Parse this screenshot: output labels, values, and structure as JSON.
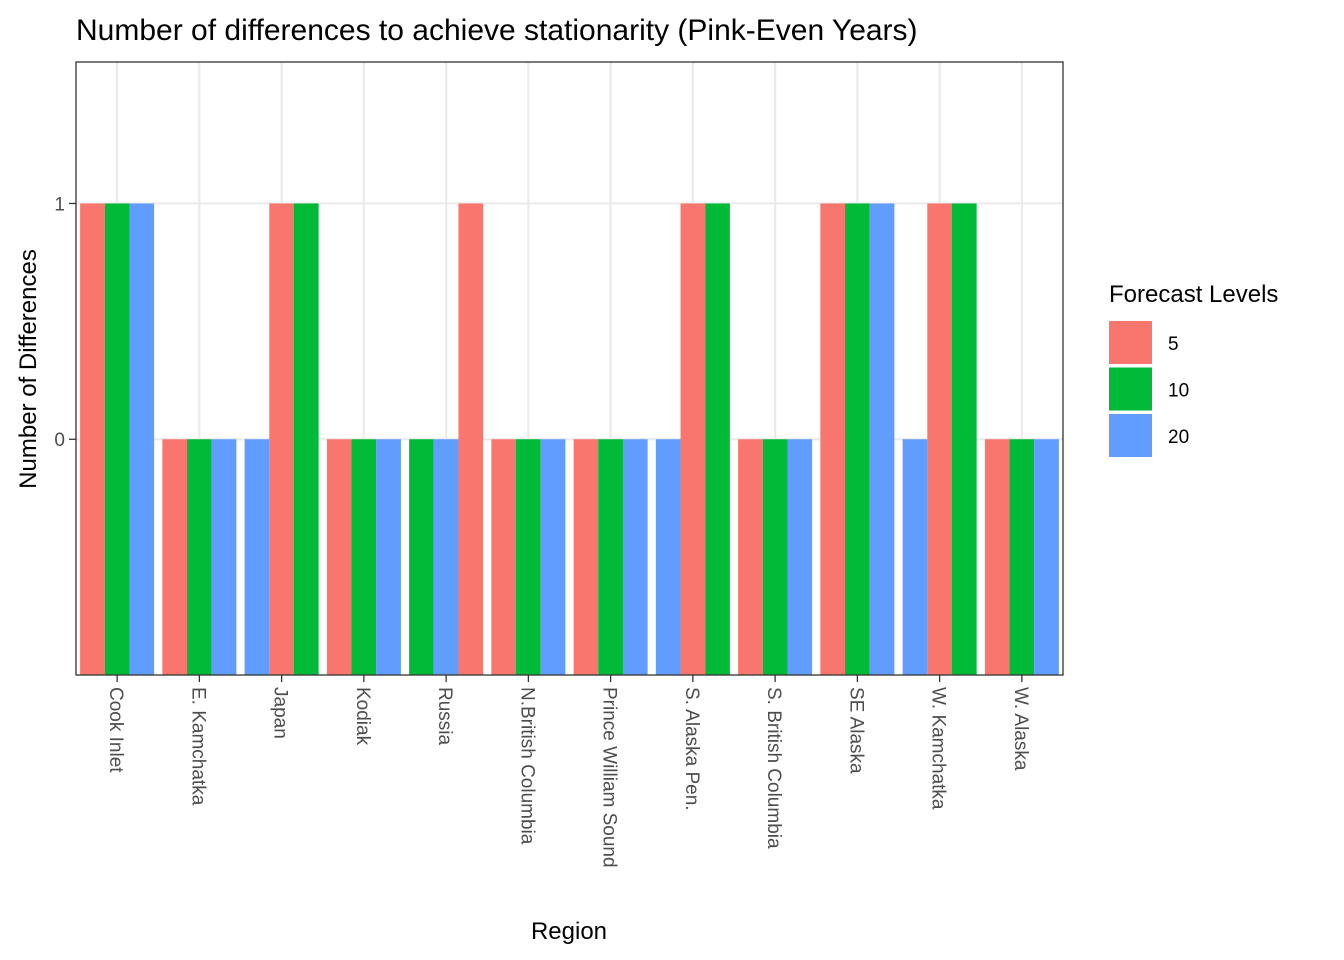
{
  "chart_data": {
    "type": "bar",
    "title": "Number of differences to achieve stationarity (Pink-Even Years)",
    "xlabel": "Region",
    "ylabel": "Number of Differences",
    "ylim": [
      -1,
      1.6
    ],
    "yticks": [
      "0",
      "1"
    ],
    "grid": true,
    "legend": {
      "title": "Forecast Levels",
      "position": "right"
    },
    "categories": [
      "Cook Inlet",
      "E. Kamchatka",
      "Japan",
      "Kodiak",
      "Russia",
      "N.British Columbia",
      "Prince William Sound",
      "S. Alaska Pen.",
      "S. British Columbia",
      "SE Alaska",
      "W. Kamchatka",
      "W. Alaska"
    ],
    "series": [
      {
        "name": "5",
        "color": "#F8766D"
      },
      {
        "name": "10",
        "color": "#00BA38"
      },
      {
        "name": "20",
        "color": "#619CFF"
      }
    ],
    "bars": [
      [
        {
          "series": "5",
          "value": 1
        },
        {
          "series": "10",
          "value": 1
        },
        {
          "series": "20",
          "value": 1
        }
      ],
      [
        {
          "series": "5",
          "value": 0
        },
        {
          "series": "10",
          "value": 0
        },
        {
          "series": "20",
          "value": 0
        }
      ],
      [
        {
          "series": "20",
          "value": 0
        },
        {
          "series": "5",
          "value": 1
        },
        {
          "series": "10",
          "value": 1
        }
      ],
      [
        {
          "series": "5",
          "value": 0
        },
        {
          "series": "10",
          "value": 0
        },
        {
          "series": "20",
          "value": 0
        }
      ],
      [
        {
          "series": "10",
          "value": 0
        },
        {
          "series": "20",
          "value": 0
        },
        {
          "series": "5",
          "value": 1
        }
      ],
      [
        {
          "series": "5",
          "value": 0
        },
        {
          "series": "10",
          "value": 0
        },
        {
          "series": "20",
          "value": 0
        }
      ],
      [
        {
          "series": "5",
          "value": 0
        },
        {
          "series": "10",
          "value": 0
        },
        {
          "series": "20",
          "value": 0
        }
      ],
      [
        {
          "series": "20",
          "value": 0
        },
        {
          "series": "5",
          "value": 1
        },
        {
          "series": "10",
          "value": 1
        }
      ],
      [
        {
          "series": "5",
          "value": 0
        },
        {
          "series": "10",
          "value": 0
        },
        {
          "series": "20",
          "value": 0
        }
      ],
      [
        {
          "series": "5",
          "value": 1
        },
        {
          "series": "10",
          "value": 1
        },
        {
          "series": "20",
          "value": 1
        }
      ],
      [
        {
          "series": "20",
          "value": 0
        },
        {
          "series": "5",
          "value": 1
        },
        {
          "series": "10",
          "value": 1
        }
      ],
      [
        {
          "series": "5",
          "value": 0
        },
        {
          "series": "10",
          "value": 0
        },
        {
          "series": "20",
          "value": 0
        }
      ]
    ]
  }
}
